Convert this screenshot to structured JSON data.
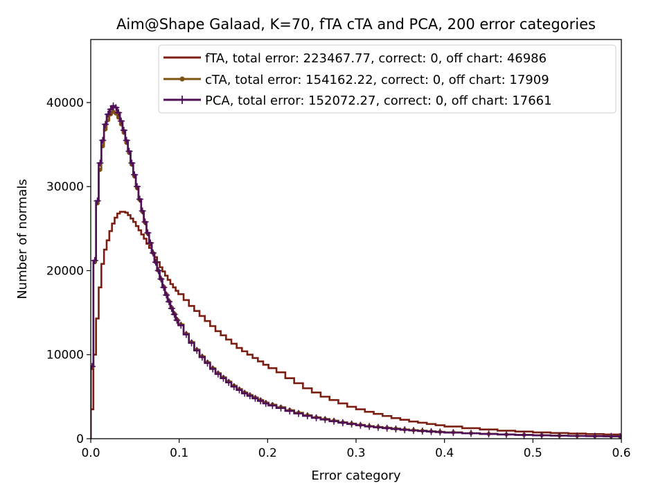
{
  "chart_data": {
    "type": "line",
    "title": "Aim@Shape Galaad, K=70, fTA cTA and PCA, 200 error categories",
    "xlabel": "Error category",
    "ylabel": "Number of normals",
    "xlim": [
      0,
      0.6
    ],
    "ylim": [
      0,
      47500
    ],
    "xticks": [
      0,
      0.1,
      0.2,
      0.3,
      0.4,
      0.5,
      0.6
    ],
    "xtick_labels": [
      "0.0",
      "0.1",
      "0.2",
      "0.3",
      "0.4",
      "0.5",
      "0.6"
    ],
    "yticks": [
      0,
      10000,
      20000,
      30000,
      40000
    ],
    "ytick_labels": [
      "0",
      "10000",
      "20000",
      "30000",
      "40000"
    ],
    "grid": false,
    "legend_position": "top-right",
    "series": [
      {
        "name": "fTA, total error: 223467.77, correct: 0, off chart: 46986",
        "color": "#7b1e12",
        "marker": "none",
        "x": [
          0,
          0.003,
          0.006,
          0.009,
          0.012,
          0.015,
          0.018,
          0.021,
          0.024,
          0.027,
          0.03,
          0.033,
          0.036,
          0.039,
          0.042,
          0.045,
          0.048,
          0.051,
          0.054,
          0.057,
          0.06,
          0.063,
          0.066,
          0.069,
          0.072,
          0.075,
          0.078,
          0.081,
          0.084,
          0.087,
          0.09,
          0.093,
          0.096,
          0.099,
          0.105,
          0.111,
          0.117,
          0.123,
          0.129,
          0.135,
          0.141,
          0.147,
          0.153,
          0.159,
          0.165,
          0.171,
          0.177,
          0.183,
          0.189,
          0.195,
          0.201,
          0.21,
          0.22,
          0.23,
          0.24,
          0.25,
          0.26,
          0.27,
          0.28,
          0.29,
          0.3,
          0.31,
          0.32,
          0.33,
          0.34,
          0.35,
          0.36,
          0.37,
          0.38,
          0.39,
          0.4,
          0.42,
          0.44,
          0.46,
          0.48,
          0.5,
          0.52,
          0.54,
          0.56,
          0.58,
          0.597
        ],
        "y": [
          3500,
          10000,
          14300,
          18000,
          20800,
          22500,
          23600,
          24700,
          25600,
          26300,
          26800,
          27000,
          27000,
          26900,
          26600,
          26200,
          25800,
          25300,
          24800,
          24300,
          23800,
          23200,
          22700,
          22100,
          21600,
          21000,
          20400,
          19900,
          19400,
          18900,
          18400,
          18000,
          17600,
          17200,
          16500,
          15800,
          15200,
          14600,
          14000,
          13400,
          12800,
          12300,
          11800,
          11300,
          10800,
          10400,
          10000,
          9600,
          9200,
          8800,
          8400,
          7900,
          7200,
          6600,
          6000,
          5500,
          5000,
          4600,
          4200,
          3800,
          3500,
          3200,
          2950,
          2700,
          2450,
          2250,
          2050,
          1900,
          1750,
          1600,
          1450,
          1250,
          1100,
          950,
          850,
          750,
          680,
          610,
          550,
          500,
          460
        ]
      },
      {
        "name": "cTA, total error: 154162.22, correct: 0, off chart: 17909",
        "color": "#7d5212",
        "marker": "circle",
        "x": [
          0,
          0.003,
          0.006,
          0.009,
          0.012,
          0.015,
          0.018,
          0.021,
          0.024,
          0.027,
          0.03,
          0.033,
          0.036,
          0.039,
          0.042,
          0.045,
          0.048,
          0.051,
          0.054,
          0.057,
          0.06,
          0.063,
          0.066,
          0.069,
          0.072,
          0.075,
          0.078,
          0.081,
          0.084,
          0.087,
          0.09,
          0.093,
          0.096,
          0.099,
          0.105,
          0.111,
          0.117,
          0.123,
          0.129,
          0.135,
          0.141,
          0.147,
          0.153,
          0.159,
          0.165,
          0.171,
          0.177,
          0.183,
          0.189,
          0.195,
          0.201,
          0.21,
          0.22,
          0.23,
          0.24,
          0.25,
          0.26,
          0.27,
          0.28,
          0.29,
          0.3,
          0.31,
          0.32,
          0.33,
          0.34,
          0.35,
          0.36,
          0.37,
          0.38,
          0.39,
          0.4,
          0.42,
          0.44,
          0.46,
          0.48,
          0.5,
          0.52,
          0.54,
          0.56,
          0.58,
          0.597
        ],
        "y": [
          8500,
          21000,
          28000,
          32000,
          34800,
          36800,
          37900,
          38600,
          38900,
          38700,
          38200,
          37400,
          36400,
          35200,
          34000,
          32600,
          31200,
          29800,
          28400,
          27000,
          25700,
          24400,
          23200,
          22100,
          21000,
          20000,
          19000,
          18100,
          17200,
          16400,
          15600,
          14900,
          14200,
          13600,
          12500,
          11500,
          10600,
          9800,
          9100,
          8400,
          7800,
          7300,
          6800,
          6300,
          5900,
          5500,
          5200,
          4900,
          4600,
          4300,
          4050,
          3750,
          3400,
          3100,
          2800,
          2550,
          2350,
          2150,
          1950,
          1800,
          1650,
          1500,
          1400,
          1300,
          1200,
          1100,
          1020,
          950,
          880,
          820,
          760,
          660,
          580,
          510,
          460,
          410,
          370,
          340,
          310,
          290,
          270
        ]
      },
      {
        "name": "PCA, total error: 152072.27, correct: 0, off chart: 17661",
        "color": "#4f0f57",
        "marker": "plus",
        "x": [
          0,
          0.003,
          0.006,
          0.009,
          0.012,
          0.015,
          0.018,
          0.021,
          0.024,
          0.027,
          0.03,
          0.033,
          0.036,
          0.039,
          0.042,
          0.045,
          0.048,
          0.051,
          0.054,
          0.057,
          0.06,
          0.063,
          0.066,
          0.069,
          0.072,
          0.075,
          0.078,
          0.081,
          0.084,
          0.087,
          0.09,
          0.093,
          0.096,
          0.099,
          0.105,
          0.111,
          0.117,
          0.123,
          0.129,
          0.135,
          0.141,
          0.147,
          0.153,
          0.159,
          0.165,
          0.171,
          0.177,
          0.183,
          0.189,
          0.195,
          0.201,
          0.21,
          0.22,
          0.23,
          0.24,
          0.25,
          0.26,
          0.27,
          0.28,
          0.29,
          0.3,
          0.31,
          0.32,
          0.33,
          0.34,
          0.35,
          0.36,
          0.37,
          0.38,
          0.39,
          0.4,
          0.42,
          0.44,
          0.46,
          0.48,
          0.5,
          0.52,
          0.54,
          0.56,
          0.58,
          0.597
        ],
        "y": [
          8600,
          21200,
          28300,
          32800,
          35500,
          37400,
          38600,
          39200,
          39600,
          39400,
          38800,
          37800,
          36700,
          35500,
          34200,
          32800,
          31400,
          30000,
          28500,
          27100,
          25800,
          24500,
          23300,
          22100,
          21000,
          20000,
          19000,
          18000,
          17100,
          16300,
          15500,
          14800,
          14100,
          13500,
          12400,
          11400,
          10500,
          9700,
          9000,
          8300,
          7700,
          7200,
          6700,
          6200,
          5800,
          5400,
          5100,
          4800,
          4500,
          4200,
          3950,
          3650,
          3300,
          3000,
          2720,
          2480,
          2280,
          2080,
          1900,
          1750,
          1600,
          1460,
          1350,
          1250,
          1150,
          1060,
          980,
          910,
          850,
          790,
          730,
          640,
          560,
          500,
          450,
          400,
          360,
          330,
          300,
          280,
          260
        ]
      }
    ]
  }
}
